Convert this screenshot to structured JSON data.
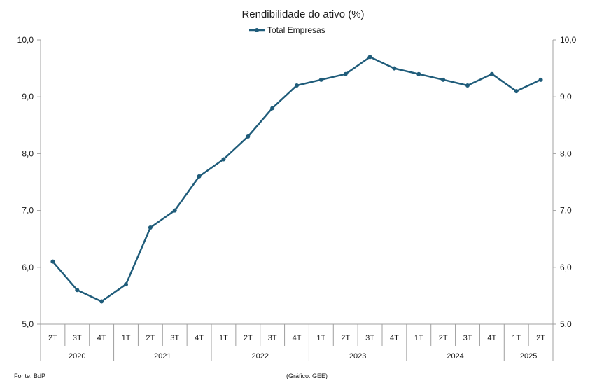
{
  "chart_data": {
    "type": "line",
    "title": "Rendibilidade do ativo (%)",
    "legend": {
      "position": "top-center"
    },
    "series": [
      {
        "name": "Total Empresas",
        "color": "#1f5c7a",
        "values": [
          6.1,
          5.6,
          5.4,
          5.7,
          6.7,
          7.0,
          7.6,
          7.9,
          8.3,
          8.8,
          9.2,
          9.3,
          9.4,
          9.7,
          9.5,
          9.4,
          9.3,
          9.2,
          9.4,
          9.1,
          9.3
        ]
      }
    ],
    "categories": [
      "2T",
      "3T",
      "4T",
      "1T",
      "2T",
      "3T",
      "4T",
      "1T",
      "2T",
      "3T",
      "4T",
      "1T",
      "2T",
      "3T",
      "4T",
      "1T",
      "2T",
      "3T",
      "4T",
      "1T",
      "2T"
    ],
    "year_groups": [
      {
        "label": "2020",
        "count": 3
      },
      {
        "label": "2021",
        "count": 4
      },
      {
        "label": "2022",
        "count": 4
      },
      {
        "label": "2023",
        "count": 4
      },
      {
        "label": "2024",
        "count": 4
      },
      {
        "label": "2025",
        "count": 2
      }
    ],
    "ylim": [
      5.0,
      10.0
    ],
    "yticks": [
      "5,0",
      "6,0",
      "7,0",
      "8,0",
      "9,0",
      "10,0"
    ],
    "secondary_yticks": [
      "5,0",
      "6,0",
      "7,0",
      "8,0",
      "9,0",
      "10,0"
    ],
    "grid": false
  },
  "footer": {
    "source": "Fonte: BdP",
    "credit": "(Gráfico: GEE)"
  }
}
